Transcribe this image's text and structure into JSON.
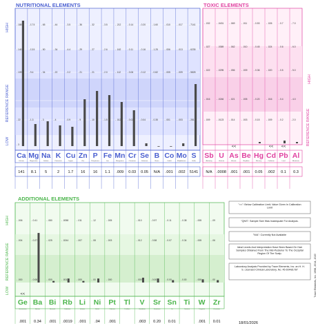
{
  "colors": {
    "blue": "#4a5fd0",
    "blue_band": "#dfe3ff",
    "blue_band2": "#cfd5fb",
    "pink": "#e040a0",
    "pink_band": "#fde0f0",
    "pink_band2": "#f9d0e8",
    "green": "#4bb54b",
    "green_band": "#e6f7e2",
    "green_band2": "#d5efcf",
    "bar": "#4a4a4a"
  },
  "nutritional": {
    "title": "NUTRITIONAL ELEMENTS",
    "axis": {
      "high": "HIGH",
      "low": "LOW",
      "ref": "REFERENCE RANGE"
    },
    "elements": [
      {
        "sym": "Ca",
        "name": "Calcium",
        "value": "141",
        "ticks": [
          "188",
          "140",
          "109",
          "22",
          "3"
        ]
      },
      {
        "sym": "Mg",
        "name": "Magnesium",
        "value": "8.1",
        "ticks": [
          "17.5",
          "13.5",
          "9.4",
          "1.3"
        ]
      },
      {
        "sym": "Na",
        "name": "Sodium",
        "value": "5",
        "ticks": [
          "65",
          "50",
          "34",
          "3"
        ]
      },
      {
        "sym": "K",
        "name": "Potassium",
        "value": "2",
        "ticks": [
          "44",
          "34",
          "22",
          "4"
        ]
      },
      {
        "sym": "Cu",
        "name": "Copper",
        "value": "1.7",
        "ticks": [
          "3.5",
          "4.4",
          "2.2",
          "0.9"
        ]
      },
      {
        "sym": "Zn",
        "name": "Zinc",
        "value": "16",
        "ticks": [
          "36",
          "29",
          "21",
          "9"
        ]
      },
      {
        "sym": "P",
        "name": "Phosphorus",
        "value": "16",
        "ticks": [
          "32",
          "27",
          "21",
          "10"
        ]
      },
      {
        "sym": "Fe",
        "name": "Iron",
        "value": "1.1",
        "ticks": [
          "3.5",
          "2.6",
          "2.0",
          "1.5"
        ]
      },
      {
        "sym": "Mn",
        "name": "Manganese",
        "value": ".009",
        "ticks": [
          ".212",
          ".162",
          ".112",
          ".012"
        ]
      },
      {
        "sym": "Cr",
        "name": "Chromium",
        "value": "0.03",
        "ticks": [
          "0.14",
          "0.11",
          "0.06",
          "0.02"
        ]
      },
      {
        "sym": "Se",
        "name": "Selenium",
        "value": "0.05",
        "ticks": [
          "0.20",
          "0.16",
          "0.12",
          "0.04"
        ]
      },
      {
        "sym": "B",
        "name": "Boron",
        "value": "N/A",
        "ticks": [
          "1.60",
          "1.25",
          "0.82",
          "0.35"
        ]
      },
      {
        "sym": "Co",
        "name": "Cobalt",
        "value": ".001",
        "ticks": [
          ".010",
          ".006",
          ".005",
          ".001"
        ]
      },
      {
        "sym": "Mo",
        "name": "Molybdenum",
        "value": ".002",
        "ticks": [
          ".017",
          ".013",
          ".009",
          ".003"
        ]
      },
      {
        "sym": "S",
        "name": "Sulfur",
        "value": "5141",
        "ticks": [
          "7141",
          "6235",
          "5828",
          "2813"
        ]
      }
    ],
    "bar_levels": [
      0.91,
      0.16,
      0.18,
      0.15,
      0.14,
      0.34,
      0.4,
      0.37,
      0.32,
      0.26,
      0.02,
      0.0,
      0.0,
      0.02,
      0.45
    ]
  },
  "toxic": {
    "title": "TOXIC ELEMENTS",
    "axis": {
      "high": "HIGH",
      "ref": "REFERENCE RANGE"
    },
    "elements": [
      {
        "sym": "Sb",
        "name": "Antimony",
        "value": "N/A",
        "ticks": [
          ".032",
          ".027",
          ".022",
          ".016",
          ".009"
        ]
      },
      {
        "sym": "U",
        "name": "Uranium",
        "value": ".0008",
        "ticks": [
          ".0431",
          ".0369",
          ".0295",
          ".0246",
          ".0123"
        ]
      },
      {
        "sym": "As",
        "name": "Arsenic",
        "value": ".001",
        "ticks": [
          ".069",
          ".062",
          ".056",
          ".021",
          ".014"
        ]
      },
      {
        "sym": "Be",
        "name": "Beryllium",
        "value": ".001",
        "ticks": [
          ".011",
          ".010",
          ".009",
          ".005",
          ".003"
        ]
      },
      {
        "sym": "Hg",
        "name": "Mercury",
        "value": "0.05",
        "ticks": [
          "0.53",
          "0.45",
          "0.36",
          "0.20",
          "0.15"
        ]
      },
      {
        "sym": "Cd",
        "name": "Cadmium",
        "value": ".002",
        "ticks": [
          ".026",
          ".024",
          ".020",
          ".016",
          ".009"
        ]
      },
      {
        "sym": "Pb",
        "name": "Lead",
        "value": "0.1",
        "ticks": [
          "0.7",
          "0.6",
          "0.5",
          "0.4",
          "0.2"
        ]
      },
      {
        "sym": "Al",
        "name": "Aluminum",
        "value": "0.3",
        "ticks": [
          "7.0",
          "6.0",
          "5.0",
          "4.0",
          "2.0"
        ]
      }
    ],
    "markers": [
      "",
      "",
      "<<",
      "",
      "",
      "<<",
      "<<",
      ""
    ],
    "bar_levels": [
      0,
      0,
      0,
      0,
      0.01,
      0,
      0.02,
      0.01
    ]
  },
  "additional": {
    "title": "ADDITIONAL ELEMENTS",
    "axis": {
      "high": "HIGH",
      "ref": "REFERENCE RANGE",
      "low": "LOW"
    },
    "elements": [
      {
        "sym": "Ge",
        "name": "Germanium",
        "value": ".001",
        "ticks": [
          ".006",
          ".004",
          ".000"
        ]
      },
      {
        "sym": "Ba",
        "name": "Barium",
        "value": "0.34",
        "ticks": [
          "0.41",
          "0.27",
          "0.06"
        ]
      },
      {
        "sym": "Bi",
        "name": "Bismuth",
        "value": ".001",
        "ticks": [
          ".080",
          ".025",
          ".000"
        ]
      },
      {
        "sym": "Rb",
        "name": "Rubidium",
        "value": ".0019",
        "ticks": [
          ".0058",
          ".0244",
          ".0013"
        ]
      },
      {
        "sym": "Li",
        "name": "Lithium",
        "value": ".001",
        "ticks": [
          ".011",
          ".007",
          ".000"
        ]
      },
      {
        "sym": "Ni",
        "name": "Nickel",
        "value": ".04",
        "ticks": [
          ".12",
          ".08",
          ".00"
        ]
      },
      {
        "sym": "Pt",
        "name": "Platinum",
        "value": ".001",
        "ticks": [
          ".005",
          ".003",
          ".000"
        ]
      },
      {
        "sym": "Tl",
        "name": "Thallium",
        "value": "",
        "ticks": []
      },
      {
        "sym": "V",
        "name": "Vanadium",
        "value": ".003",
        "ticks": [
          ".010",
          ".012",
          ".000"
        ]
      },
      {
        "sym": "Sr",
        "name": "Strontium",
        "value": "0.20",
        "ticks": [
          "0.97",
          "0.58",
          "0.00"
        ]
      },
      {
        "sym": "Sn",
        "name": "Tin",
        "value": "0.01",
        "ticks": [
          "0.11",
          "0.07",
          "0.00"
        ]
      },
      {
        "sym": "Ti",
        "name": "Titanium",
        "value": "",
        "ticks": [
          "0.38",
          "0.34",
          "0.00"
        ]
      },
      {
        "sym": "W",
        "name": "Tungsten",
        "value": ".001",
        "ticks": [
          ".005",
          ".005",
          ".000"
        ]
      },
      {
        "sym": "Zr",
        "name": "Zirconium",
        "value": "0.01",
        "ticks": [
          ".09",
          ".06",
          ".00"
        ]
      }
    ],
    "markers": [
      "<<",
      "",
      "",
      "",
      "",
      "",
      "",
      "",
      "",
      "",
      "",
      "",
      "",
      ""
    ],
    "bar_levels": [
      0.0,
      0.62,
      0.02,
      0.05,
      0.02,
      0.05,
      0.0,
      0,
      0.06,
      0.05,
      0.03,
      0,
      0.04,
      0.03
    ]
  },
  "notes": [
    "\"<<\": Below Calibration Limit; Value Given In Calibration Limit",
    "\"QNS\": Sample Size Was Inadequate For Analysis.",
    "\"N/A\": Currently Not Available",
    "Ideal Levels And Interpretation Have Been Based On Hair Samples Obtained From The Mid-Posterior To The Occipital Region Of The Scalp.",
    "Laboratory Analysis Provided by Trace Elements, Inc. an H. H. S. Licensed Clinical Laboratory, No. 45-D0481787"
  ],
  "date": "18/01/2026",
  "side_text": "Trace Elements, Inc. 1998, 2014, 2020"
}
